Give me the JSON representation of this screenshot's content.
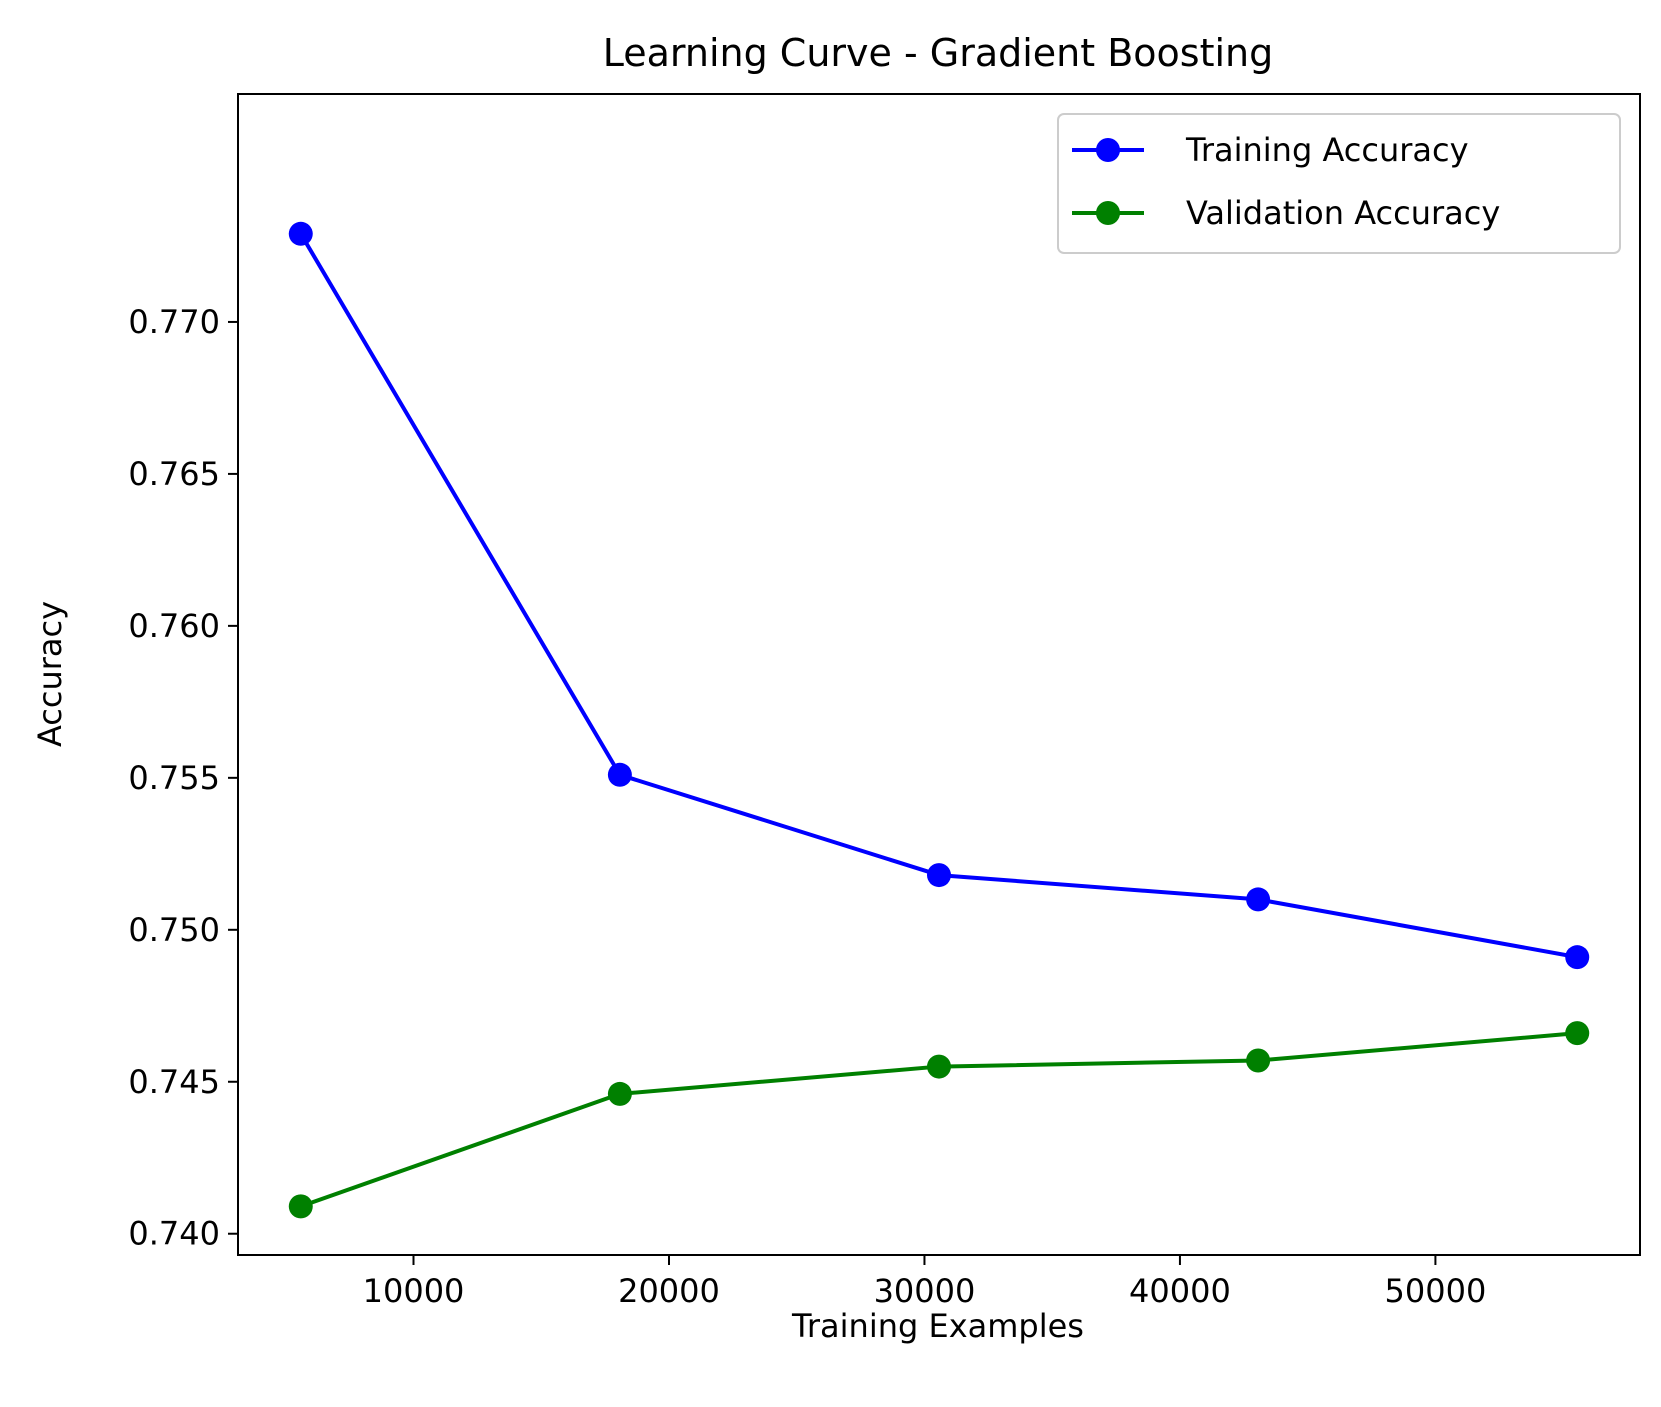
{
  "chart_data": {
    "type": "line",
    "title": "Learning Curve - Gradient Boosting",
    "xlabel": "Training Examples",
    "ylabel": "Accuracy",
    "x": [
      5587,
      18078,
      30569,
      43060,
      55551
    ],
    "series": [
      {
        "name": "Training Accuracy",
        "color": "#0000ff",
        "marker": "circle",
        "values": [
          0.7729,
          0.7551,
          0.7518,
          0.751,
          0.7491
        ]
      },
      {
        "name": "Validation Accuracy",
        "color": "#008000",
        "marker": "circle",
        "values": [
          0.7409,
          0.7446,
          0.7455,
          0.7457,
          0.7466
        ]
      }
    ],
    "xlim": [
      3130,
      58008
    ],
    "ylim": [
      0.7393,
      0.7775
    ],
    "xticks": [
      10000,
      20000,
      30000,
      40000,
      50000
    ],
    "xtick_labels": [
      "10000",
      "20000",
      "30000",
      "40000",
      "50000"
    ],
    "yticks": [
      0.74,
      0.745,
      0.75,
      0.755,
      0.76,
      0.765,
      0.77
    ],
    "ytick_labels": [
      "0.740",
      "0.745",
      "0.750",
      "0.755",
      "0.760",
      "0.765",
      "0.770"
    ],
    "grid": false,
    "legend_position": "top-right"
  }
}
